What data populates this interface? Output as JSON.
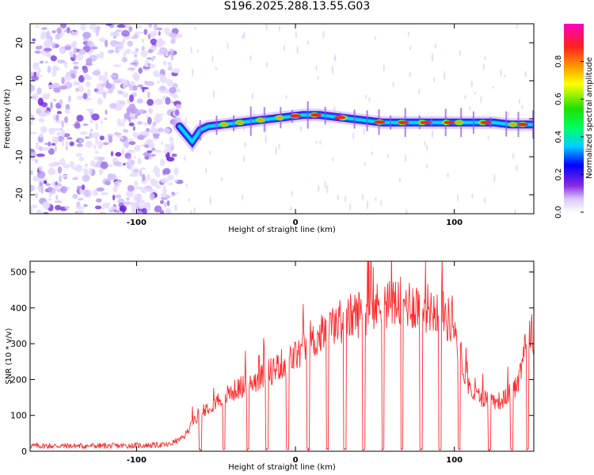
{
  "title": "S196.2025.288.13.55.G03",
  "chart_data": [
    {
      "type": "heatmap",
      "name": "spectrogram",
      "xlabel": "Height of straight line (km)",
      "ylabel": "Frequency (Hz)",
      "xlim": [
        -167,
        150
      ],
      "ylim": [
        -25,
        25
      ],
      "xticks": [
        -100,
        0,
        100
      ],
      "yticks": [
        -20,
        -10,
        0,
        10,
        20
      ],
      "colorbar": {
        "label": "Normalized spectral amplitude",
        "range": [
          0,
          1
        ],
        "ticks": [
          0.0,
          0.2,
          0.4,
          0.6,
          0.8
        ]
      },
      "noise_region_x": [
        -167,
        -73
      ],
      "signal_ridge": {
        "x": [
          -73,
          -65,
          -60,
          -55,
          -45,
          -35,
          -25,
          -15,
          -5,
          5,
          15,
          25,
          35,
          45,
          55,
          65,
          75,
          85,
          95,
          105,
          115,
          125,
          135,
          145,
          150
        ],
        "freq_hz": [
          -2,
          -6,
          -3,
          -2,
          -1.5,
          -1,
          -0.5,
          0,
          0.5,
          1,
          1,
          0.5,
          0,
          -0.5,
          -1,
          -1,
          -1,
          -1,
          -1,
          -1,
          -1,
          -1,
          -1.5,
          -1.5,
          -1.5
        ]
      }
    },
    {
      "type": "line",
      "name": "snr",
      "xlabel": "Height of straight line (km)",
      "ylabel": "SNR (10 * v/v)",
      "xlim": [
        -167,
        150
      ],
      "ylim": [
        0,
        530
      ],
      "xticks": [
        -100,
        0,
        100
      ],
      "yticks": [
        0,
        100,
        200,
        300,
        400,
        500
      ],
      "series_color": "#ff2a2a",
      "envelope": {
        "x": [
          -167,
          -140,
          -110,
          -80,
          -70,
          -65,
          -60,
          -50,
          -40,
          -30,
          -20,
          -10,
          0,
          10,
          20,
          30,
          40,
          50,
          60,
          70,
          80,
          90,
          100,
          105,
          110,
          120,
          130,
          140,
          145,
          150
        ],
        "y": [
          15,
          15,
          15,
          18,
          40,
          80,
          110,
          140,
          165,
          190,
          210,
          240,
          265,
          300,
          340,
          365,
          385,
          400,
          410,
          415,
          405,
          395,
          350,
          250,
          165,
          145,
          140,
          190,
          320,
          330
        ]
      },
      "dropout_x": [
        -60,
        -45,
        -30,
        -18,
        -5,
        8,
        20,
        31,
        43,
        55,
        67,
        79,
        91,
        103,
        122,
        136,
        146
      ]
    }
  ]
}
